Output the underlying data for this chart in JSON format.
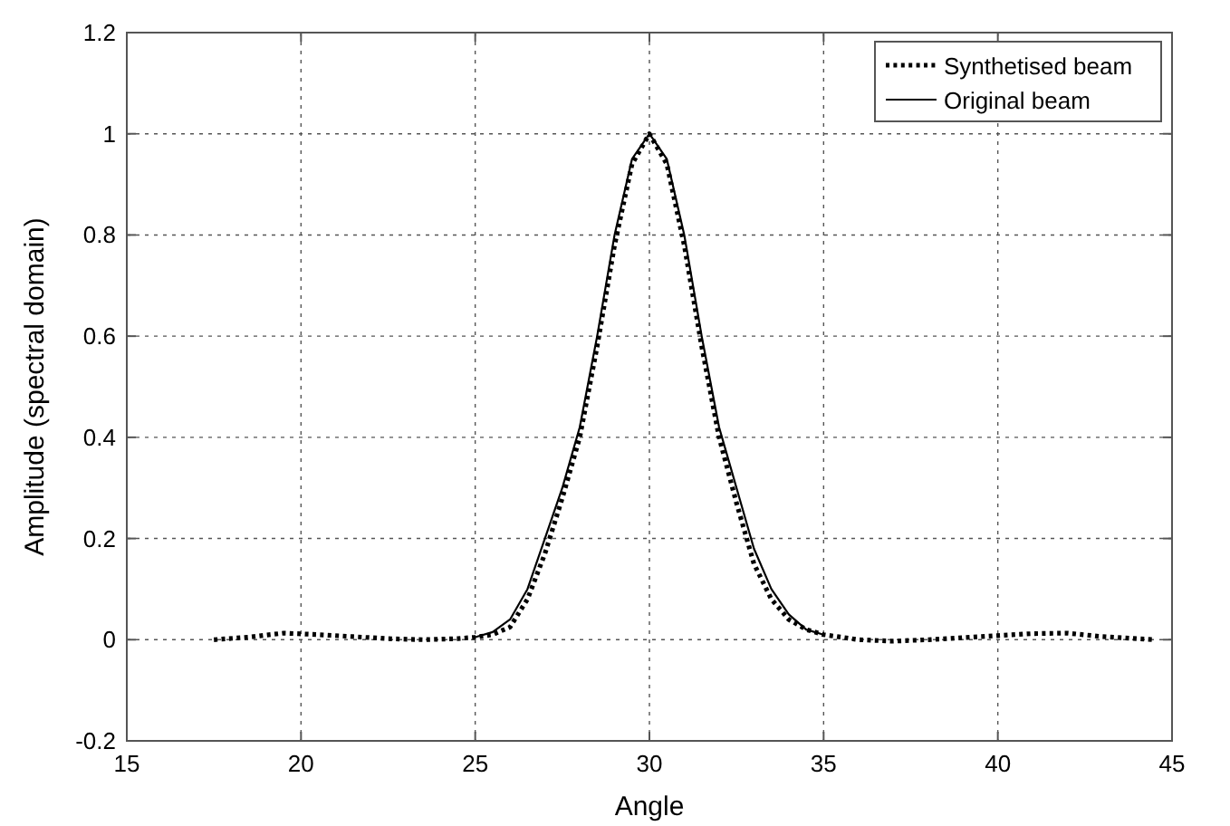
{
  "chart_data": {
    "type": "line",
    "xlabel": "Angle",
    "ylabel": "Amplitude (spectral domain)",
    "xlim": [
      15,
      45
    ],
    "ylim": [
      -0.2,
      1.2
    ],
    "xticks": [
      15,
      20,
      25,
      30,
      35,
      40,
      45
    ],
    "yticks": [
      -0.2,
      0,
      0.2,
      0.4,
      0.6,
      0.8,
      1,
      1.2
    ],
    "grid": true,
    "legend": "top right",
    "series": [
      {
        "name": "Synthetised beam",
        "color": "#000000",
        "line_style": "dotted",
        "x": [
          17.5,
          18.5,
          19.5,
          20.5,
          21.5,
          22.5,
          23.5,
          24.5,
          25,
          25.5,
          26,
          26.5,
          27,
          27.5,
          28,
          28.5,
          29,
          29.5,
          30,
          30.5,
          31,
          31.5,
          32,
          32.5,
          33,
          33.5,
          34,
          34.5,
          35,
          36,
          37,
          38,
          39,
          40,
          41,
          42,
          43,
          44,
          44.5
        ],
        "values": [
          0,
          0.005,
          0.013,
          0.01,
          0.006,
          0.002,
          0,
          0.002,
          0.005,
          0.01,
          0.025,
          0.08,
          0.17,
          0.28,
          0.4,
          0.58,
          0.78,
          0.94,
          1,
          0.94,
          0.78,
          0.58,
          0.4,
          0.27,
          0.15,
          0.08,
          0.04,
          0.02,
          0.01,
          0,
          -0.003,
          0,
          0.004,
          0.008,
          0.012,
          0.013,
          0.006,
          0.002,
          0
        ]
      },
      {
        "name": "Original beam",
        "color": "#000000",
        "line_style": "solid",
        "x": [
          25,
          25.5,
          26,
          26.5,
          27,
          27.5,
          28,
          28.5,
          29,
          29.5,
          30,
          30.5,
          31,
          31.5,
          32,
          32.5,
          33,
          33.5,
          34,
          34.5,
          35
        ],
        "values": [
          0.005,
          0.015,
          0.04,
          0.1,
          0.2,
          0.3,
          0.42,
          0.6,
          0.8,
          0.95,
          1,
          0.95,
          0.8,
          0.6,
          0.42,
          0.3,
          0.18,
          0.1,
          0.05,
          0.02,
          0.01
        ]
      }
    ]
  }
}
